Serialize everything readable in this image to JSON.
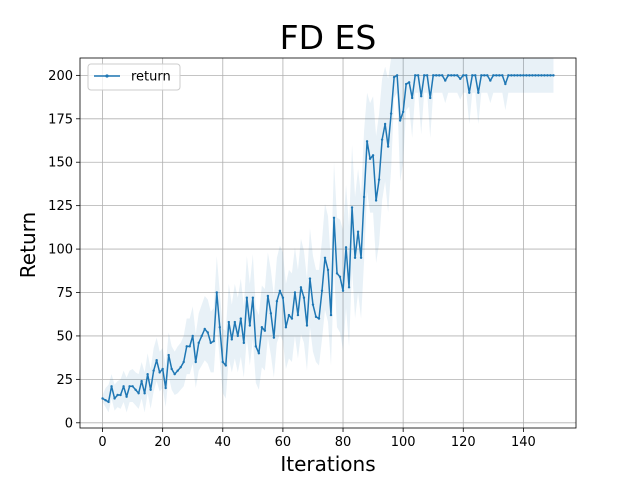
{
  "chart_data": {
    "type": "line",
    "title": "FD ES",
    "xlabel": "Iterations",
    "ylabel": "Return",
    "xlim": [
      -7.5,
      157.5
    ],
    "ylim": [
      -3,
      210
    ],
    "xticks": [
      0,
      20,
      40,
      60,
      80,
      100,
      120,
      140
    ],
    "yticks": [
      0,
      25,
      50,
      75,
      100,
      125,
      150,
      175,
      200
    ],
    "grid": true,
    "legend": {
      "placement": "top-left",
      "entries": [
        "return"
      ]
    },
    "colors": {
      "line": "#1f77b4",
      "band": "#1f77b4",
      "grid": "#b0b0b0"
    },
    "series": [
      {
        "name": "return",
        "x": [
          0,
          1,
          2,
          3,
          4,
          5,
          6,
          7,
          8,
          9,
          10,
          11,
          12,
          13,
          14,
          15,
          16,
          17,
          18,
          19,
          20,
          21,
          22,
          23,
          24,
          25,
          26,
          27,
          28,
          29,
          30,
          31,
          32,
          33,
          34,
          35,
          36,
          37,
          38,
          39,
          40,
          41,
          42,
          43,
          44,
          45,
          46,
          47,
          48,
          49,
          50,
          51,
          52,
          53,
          54,
          55,
          56,
          57,
          58,
          59,
          60,
          61,
          62,
          63,
          64,
          65,
          66,
          67,
          68,
          69,
          70,
          71,
          72,
          73,
          74,
          75,
          76,
          77,
          78,
          79,
          80,
          81,
          82,
          83,
          84,
          85,
          86,
          87,
          88,
          89,
          90,
          91,
          92,
          93,
          94,
          95,
          96,
          97,
          98,
          99,
          100,
          101,
          102,
          103,
          104,
          105,
          106,
          107,
          108,
          109,
          110,
          111,
          112,
          113,
          114,
          115,
          116,
          117,
          118,
          119,
          120,
          121,
          122,
          123,
          124,
          125,
          126,
          127,
          128,
          129,
          130,
          131,
          132,
          133,
          134,
          135,
          136,
          137,
          138,
          139,
          140,
          141,
          142,
          143,
          144,
          145,
          146,
          147,
          148,
          149,
          150
        ],
        "y": [
          14,
          13,
          12,
          21,
          14,
          16,
          16,
          21,
          15,
          21,
          21,
          19,
          17,
          24,
          17,
          28,
          19,
          30,
          36,
          29,
          31,
          20,
          39,
          31,
          28,
          30,
          32,
          35,
          44,
          44,
          50,
          35,
          46,
          50,
          54,
          52,
          46,
          47,
          75,
          55,
          35,
          33,
          58,
          48,
          58,
          50,
          60,
          46,
          72,
          56,
          72,
          44,
          40,
          55,
          53,
          73,
          63,
          49,
          70,
          76,
          72,
          55,
          62,
          60,
          75,
          62,
          78,
          72,
          56,
          83,
          68,
          61,
          60,
          76,
          95,
          88,
          62,
          118,
          86,
          84,
          76,
          101,
          78,
          124,
          95,
          110,
          95,
          130,
          162,
          152,
          154,
          128,
          140,
          163,
          172,
          159,
          178,
          199,
          200,
          174,
          179,
          195,
          196,
          187,
          200,
          200,
          188,
          200,
          200,
          187,
          200,
          200,
          200,
          200,
          197,
          200,
          200,
          200,
          200,
          198,
          200,
          200,
          190,
          200,
          200,
          190,
          200,
          200,
          200,
          197,
          200,
          200,
          200,
          200,
          195,
          200,
          200,
          200,
          200,
          200,
          200,
          200,
          200,
          200,
          200,
          200,
          200,
          200,
          200,
          200,
          200
        ],
        "band_upper": [
          16,
          20,
          22,
          28,
          22,
          24,
          25,
          30,
          26,
          30,
          31,
          29,
          28,
          35,
          29,
          40,
          31,
          43,
          49,
          41,
          43,
          33,
          52,
          44,
          41,
          44,
          46,
          50,
          60,
          60,
          67,
          51,
          63,
          68,
          73,
          71,
          64,
          66,
          96,
          75,
          54,
          53,
          80,
          68,
          80,
          72,
          83,
          67,
          96,
          80,
          97,
          66,
          62,
          79,
          77,
          98,
          88,
          73,
          95,
          102,
          98,
          80,
          88,
          86,
          101,
          88,
          106,
          99,
          83,
          112,
          96,
          88,
          88,
          105,
          126,
          119,
          91,
          150,
          118,
          117,
          111,
          137,
          113,
          160,
          130,
          146,
          131,
          168,
          190,
          184,
          188,
          165,
          178,
          198,
          205,
          198,
          210,
          210,
          210,
          210,
          210,
          210,
          210,
          210,
          210,
          210,
          210,
          210,
          210,
          210,
          210,
          210,
          210,
          210,
          210,
          210,
          210,
          210,
          210,
          210,
          210,
          210,
          210,
          210,
          210,
          210,
          210,
          210,
          210,
          210,
          210,
          210,
          210,
          210,
          210,
          210,
          210,
          210,
          210,
          210,
          210,
          210,
          210,
          210,
          210,
          210,
          210,
          210,
          210,
          210,
          210
        ],
        "band_lower": [
          12,
          9,
          6,
          14,
          7,
          9,
          8,
          12,
          6,
          12,
          12,
          10,
          8,
          14,
          6,
          17,
          8,
          18,
          24,
          18,
          20,
          9,
          27,
          19,
          16,
          17,
          19,
          21,
          28,
          28,
          34,
          20,
          30,
          33,
          36,
          34,
          29,
          29,
          55,
          36,
          17,
          14,
          37,
          29,
          37,
          29,
          38,
          26,
          49,
          33,
          48,
          23,
          19,
          32,
          30,
          49,
          39,
          26,
          46,
          51,
          47,
          31,
          37,
          35,
          50,
          37,
          51,
          46,
          30,
          55,
          41,
          35,
          33,
          48,
          65,
          58,
          33,
          87,
          55,
          52,
          42,
          66,
          44,
          89,
          60,
          75,
          60,
          93,
          133,
          121,
          121,
          92,
          103,
          128,
          139,
          121,
          146,
          187,
          190,
          139,
          150,
          180,
          182,
          164,
          190,
          190,
          166,
          190,
          190,
          164,
          190,
          190,
          190,
          190,
          184,
          190,
          190,
          190,
          190,
          186,
          190,
          190,
          172,
          190,
          190,
          172,
          190,
          190,
          190,
          184,
          190,
          190,
          190,
          190,
          180,
          190,
          190,
          190,
          190,
          190,
          190,
          190,
          190,
          190,
          190,
          190,
          190,
          190,
          190,
          190,
          190
        ]
      }
    ]
  }
}
